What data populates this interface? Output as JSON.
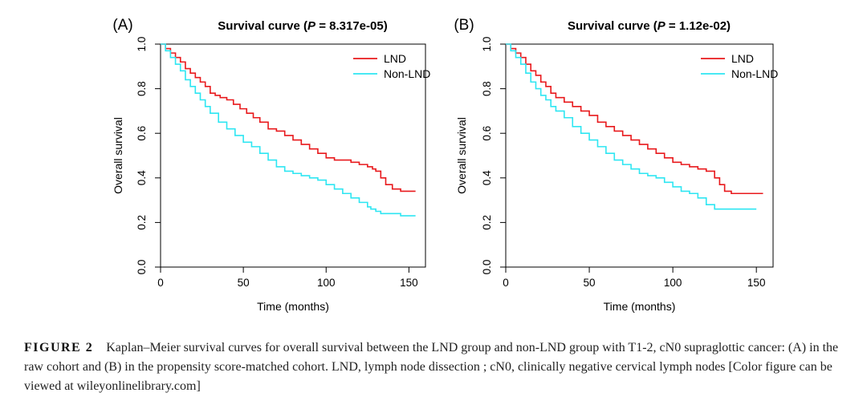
{
  "chart_data": [
    {
      "type": "line",
      "panel_label": "(A)",
      "title": "Survival curve (P = 8.317e-05)",
      "title_prefix": "Survival curve (",
      "title_p": "P",
      "title_suffix": " = 8.317e-05)",
      "xlabel": "Time (months)",
      "ylabel": "Overall survival",
      "xlim": [
        0,
        160
      ],
      "ylim": [
        0,
        1
      ],
      "xticks": [
        0,
        50,
        100,
        150
      ],
      "yticks": [
        0.0,
        0.2,
        0.4,
        0.6,
        0.8,
        1.0
      ],
      "xtick_labels": [
        "0",
        "50",
        "100",
        "150"
      ],
      "ytick_labels": [
        "0.0",
        "0.2",
        "0.4",
        "0.6",
        "0.8",
        "1.0"
      ],
      "legend_position": "top-right",
      "grid": false,
      "series": [
        {
          "name": "LND",
          "color": "#e8191c",
          "x": [
            0,
            3,
            6,
            9,
            12,
            15,
            18,
            21,
            24,
            27,
            30,
            33,
            36,
            40,
            44,
            48,
            52,
            56,
            60,
            65,
            70,
            75,
            80,
            85,
            90,
            95,
            100,
            105,
            110,
            115,
            120,
            125,
            128,
            130,
            133,
            136,
            140,
            145,
            150,
            154
          ],
          "y": [
            1.0,
            0.98,
            0.96,
            0.94,
            0.92,
            0.89,
            0.87,
            0.85,
            0.83,
            0.81,
            0.78,
            0.77,
            0.76,
            0.75,
            0.73,
            0.71,
            0.69,
            0.67,
            0.65,
            0.62,
            0.61,
            0.59,
            0.57,
            0.55,
            0.53,
            0.51,
            0.49,
            0.48,
            0.48,
            0.47,
            0.46,
            0.45,
            0.44,
            0.43,
            0.4,
            0.37,
            0.35,
            0.34,
            0.34,
            0.34
          ]
        },
        {
          "name": "Non-LND",
          "color": "#2ee6f2",
          "x": [
            0,
            3,
            6,
            9,
            12,
            15,
            18,
            21,
            24,
            27,
            30,
            35,
            40,
            45,
            50,
            55,
            60,
            65,
            70,
            75,
            80,
            85,
            90,
            95,
            100,
            105,
            110,
            115,
            120,
            125,
            127,
            130,
            133,
            136,
            140,
            145,
            150,
            154
          ],
          "y": [
            1.0,
            0.97,
            0.94,
            0.91,
            0.88,
            0.84,
            0.81,
            0.78,
            0.75,
            0.72,
            0.69,
            0.65,
            0.62,
            0.59,
            0.56,
            0.54,
            0.51,
            0.48,
            0.45,
            0.43,
            0.42,
            0.41,
            0.4,
            0.39,
            0.37,
            0.35,
            0.33,
            0.31,
            0.29,
            0.27,
            0.26,
            0.25,
            0.24,
            0.24,
            0.24,
            0.23,
            0.23,
            0.23
          ]
        }
      ]
    },
    {
      "type": "line",
      "panel_label": "(B)",
      "title": "Survival curve (P = 1.12e-02)",
      "title_prefix": "Survival curve (",
      "title_p": "P",
      "title_suffix": " = 1.12e-02)",
      "xlabel": "Time (months)",
      "ylabel": "Overall survival",
      "xlim": [
        0,
        160
      ],
      "ylim": [
        0,
        1
      ],
      "xticks": [
        0,
        50,
        100,
        150
      ],
      "yticks": [
        0.0,
        0.2,
        0.4,
        0.6,
        0.8,
        1.0
      ],
      "xtick_labels": [
        "0",
        "50",
        "100",
        "150"
      ],
      "ytick_labels": [
        "0.0",
        "0.2",
        "0.4",
        "0.6",
        "0.8",
        "1.0"
      ],
      "legend_position": "top-right",
      "grid": false,
      "series": [
        {
          "name": "LND",
          "color": "#e8191c",
          "x": [
            0,
            3,
            6,
            9,
            12,
            15,
            18,
            21,
            24,
            27,
            30,
            35,
            40,
            45,
            50,
            55,
            60,
            65,
            70,
            75,
            80,
            85,
            90,
            95,
            100,
            105,
            110,
            115,
            120,
            125,
            128,
            131,
            135,
            140,
            145,
            150,
            154
          ],
          "y": [
            1.0,
            0.98,
            0.96,
            0.94,
            0.91,
            0.88,
            0.86,
            0.83,
            0.81,
            0.78,
            0.76,
            0.74,
            0.72,
            0.7,
            0.68,
            0.65,
            0.63,
            0.61,
            0.59,
            0.57,
            0.55,
            0.53,
            0.51,
            0.49,
            0.47,
            0.46,
            0.45,
            0.44,
            0.43,
            0.4,
            0.37,
            0.34,
            0.33,
            0.33,
            0.33,
            0.33,
            0.33
          ]
        },
        {
          "name": "Non-LND",
          "color": "#2ee6f2",
          "x": [
            0,
            3,
            6,
            9,
            12,
            15,
            18,
            21,
            24,
            27,
            30,
            35,
            40,
            45,
            50,
            55,
            60,
            65,
            70,
            75,
            80,
            85,
            90,
            95,
            100,
            105,
            110,
            115,
            120,
            125,
            130,
            135,
            140,
            145,
            150
          ],
          "y": [
            1.0,
            0.97,
            0.94,
            0.91,
            0.87,
            0.83,
            0.8,
            0.77,
            0.75,
            0.72,
            0.7,
            0.67,
            0.63,
            0.6,
            0.57,
            0.54,
            0.51,
            0.48,
            0.46,
            0.44,
            0.42,
            0.41,
            0.4,
            0.38,
            0.36,
            0.34,
            0.33,
            0.31,
            0.28,
            0.26,
            0.26,
            0.26,
            0.26,
            0.26,
            0.26
          ]
        }
      ]
    }
  ],
  "caption": {
    "label": "FIGURE 2",
    "text": "Kaplan–Meier survival curves for overall survival between the LND group and non-LND group with T1-2, cN0 supraglottic cancer: (A) in the raw cohort and (B) in the propensity score-matched cohort. LND, lymph node dissection ; cN0, clinically negative cervical lymph nodes [Color figure can be viewed at wileyonlinelibrary.com]"
  }
}
